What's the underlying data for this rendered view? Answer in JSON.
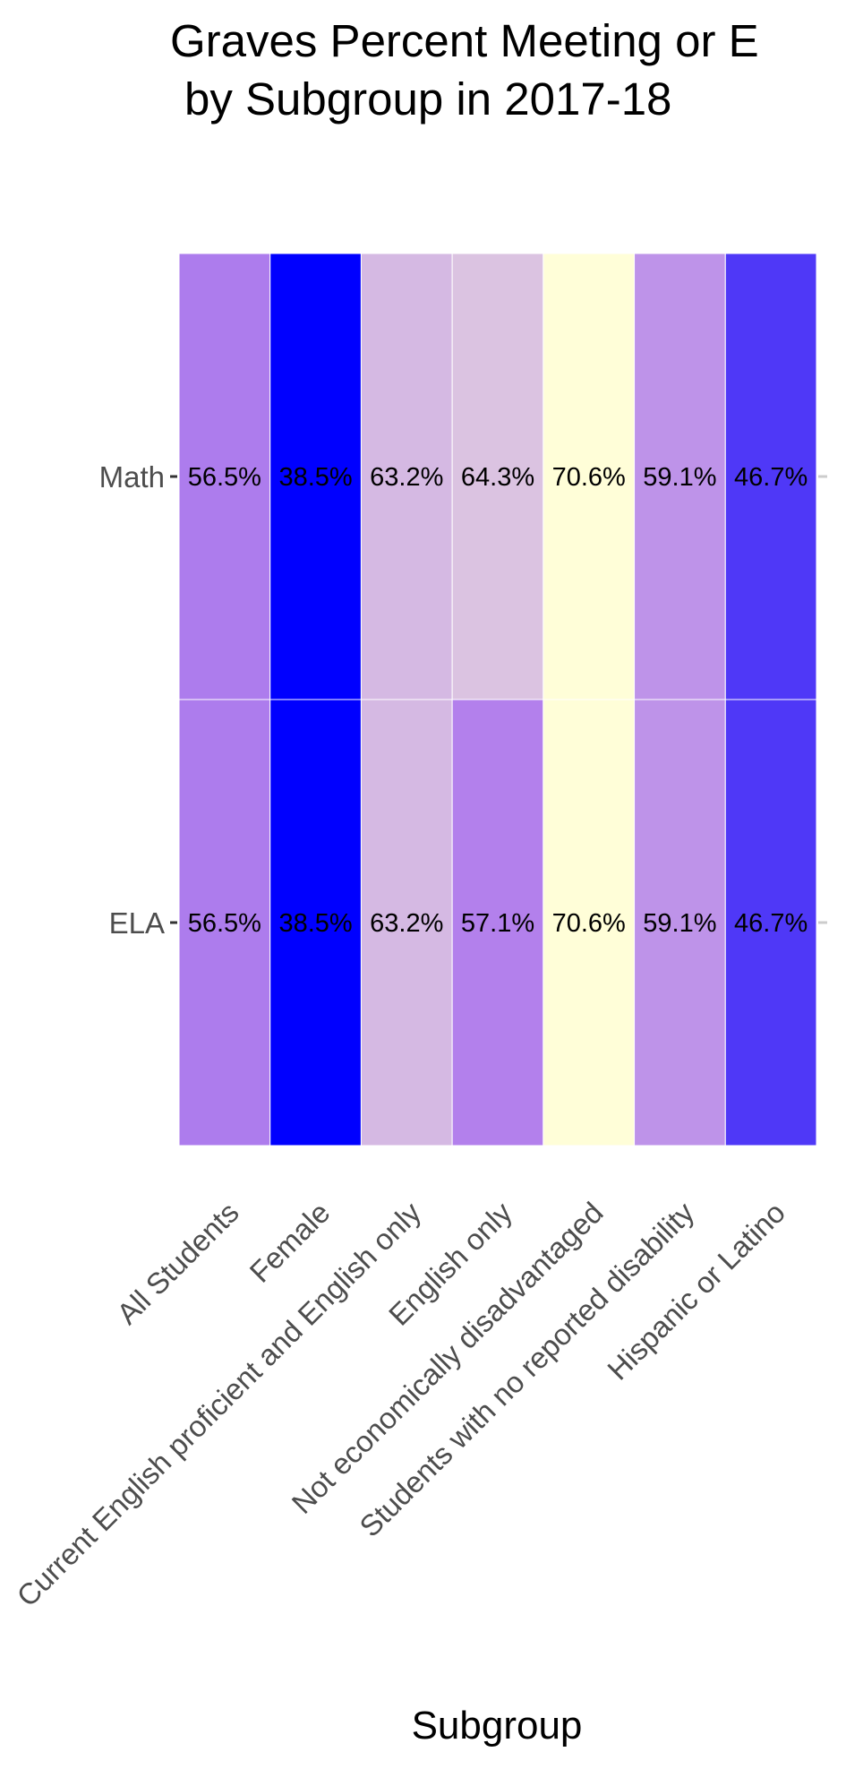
{
  "chart_data": {
    "type": "heatmap",
    "title_lines": [
      "Graves Percent Meeting or E",
      "by Subgroup in 2017-18"
    ],
    "xlabel": "Subgroup",
    "ylabel": "",
    "categories": [
      "All Students",
      "Female",
      "Current English proficient and English only",
      "English only",
      "Not economically disadvantaged",
      "Students with no reported disability",
      "Hispanic or Latino"
    ],
    "rows": [
      "Math",
      "ELA"
    ],
    "values": [
      [
        56.5,
        38.5,
        63.2,
        64.3,
        70.6,
        59.1,
        46.7
      ],
      [
        56.5,
        38.5,
        63.2,
        57.1,
        70.6,
        59.1,
        46.7
      ]
    ],
    "labels": [
      [
        "56.5%",
        "38.5%",
        "63.2%",
        "64.3%",
        "70.6%",
        "59.1%",
        "46.7%"
      ],
      [
        "56.5%",
        "38.5%",
        "63.2%",
        "57.1%",
        "70.6%",
        "59.1%",
        "46.7%"
      ]
    ],
    "color_scale": {
      "low": "#0000ff",
      "mid": "#b27fec",
      "high": "#fffed8"
    },
    "grid": false,
    "legend": "none"
  }
}
